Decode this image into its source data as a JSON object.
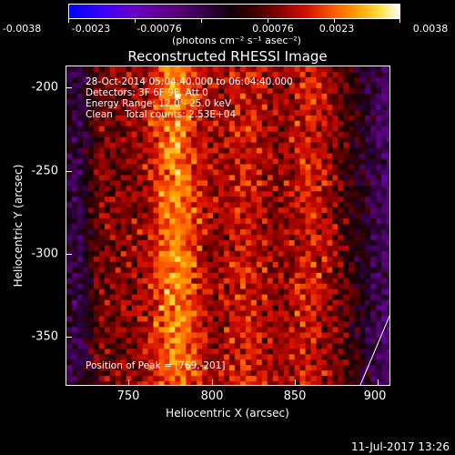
{
  "colorbar": {
    "ticks": [
      "-0.0038",
      "-0.0023",
      "-0.00076",
      "0.00076",
      "0.0023",
      "0.0038"
    ],
    "units": "(photons cm⁻² s⁻¹ asec⁻²)"
  },
  "title": "Reconstructed RHESSI Image",
  "info": {
    "time": "28-Oct-2014 05:04:40.000 to 06:04:40.000",
    "detectors": "Detectors: 3F 6F 9F, Att 0",
    "energy": "Energy Range: 12.0 - 25.0 keV",
    "clean": "Clean    Total counts: 2.53E+04",
    "peak": "Position of Peak = [769,-201]"
  },
  "axes": {
    "xlabel": "Heliocentric X (arcsec)",
    "ylabel": "Heliocentric Y (arcsec)",
    "xticks": [
      "750",
      "800",
      "850",
      "900"
    ],
    "yticks": [
      "-200",
      "-250",
      "-300",
      "-350"
    ]
  },
  "timestamp": "11-Jul-2017 13:26"
}
